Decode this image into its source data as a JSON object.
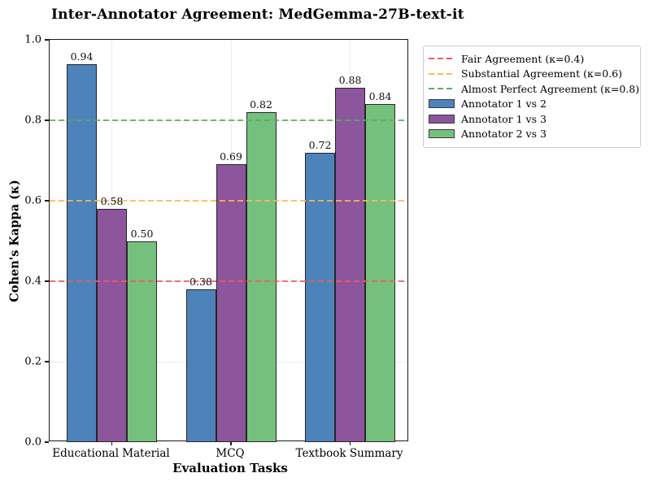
{
  "chart_data": {
    "type": "bar",
    "title": "Inter-Annotator Agreement: MedGemma-27B-text-it",
    "xlabel": "Evaluation Tasks",
    "ylabel": "Cohen's Kappa (κ)",
    "ylim": [
      0.0,
      1.0
    ],
    "yticks": [
      0.0,
      0.2,
      0.4,
      0.6,
      0.8,
      1.0
    ],
    "grid": true,
    "legend_position": "outside-right",
    "bar_value_labels": true,
    "categories": [
      "Educational Material",
      "MCQ",
      "Textbook Summary"
    ],
    "series": [
      {
        "name": "Annotator 1 vs 2",
        "color": "#4D82BA",
        "values": [
          0.94,
          0.38,
          0.72
        ]
      },
      {
        "name": "Annotator 1 vs 3",
        "color": "#8D559C",
        "values": [
          0.58,
          0.69,
          0.88
        ]
      },
      {
        "name": "Annotator 2 vs 3",
        "color": "#76C07E",
        "values": [
          0.5,
          0.82,
          0.84
        ]
      }
    ],
    "reference_lines": [
      {
        "label": "Fair Agreement (κ=0.4)",
        "value": 0.4,
        "color": "#F15B5B"
      },
      {
        "label": "Substantial Agreement (κ=0.6)",
        "value": 0.6,
        "color": "#FFB94E"
      },
      {
        "label": "Almost Perfect Agreement (κ=0.8)",
        "value": 0.8,
        "color": "#58AC68"
      }
    ]
  }
}
